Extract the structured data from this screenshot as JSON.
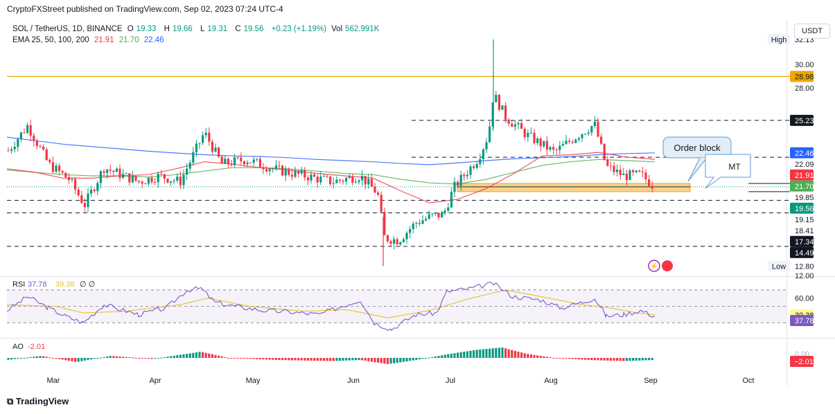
{
  "header": {
    "published": "CryptoFXStreet published on TradingView.com, Sep 02, 2023 07:24 UTC-4"
  },
  "legend": {
    "symbol": "SOL / TetherUS, 1D, BINANCE",
    "open_label": "O",
    "open": "19.33",
    "high_label": "H",
    "high": "19.66",
    "low_label": "L",
    "low": "19.31",
    "close_label": "C",
    "close": "19.56",
    "change": "+0.23 (+1.19%)",
    "vol_label": "Vol",
    "vol": "562.991K",
    "ema_label": "EMA 25, 50, 100, 200",
    "ema25": "21.91",
    "ema50": "21.70",
    "ema100": "",
    "ema200": "22.46"
  },
  "currency_button": "USDT",
  "footer": {
    "brand": "TradingView"
  },
  "colors": {
    "up": "#089981",
    "down": "#f23645",
    "ema25": "#f23645",
    "ema50": "#4caf50",
    "ema200": "#2962ff",
    "orange_line": "#f0a500",
    "order_block": "#ffb74d",
    "rsi": "#7e57c2",
    "rsi_ma": "#e6c229"
  },
  "chart_data": [
    {
      "type": "candlestick",
      "title": "SOL / TetherUS, 1D, BINANCE",
      "ylim": [
        12.0,
        32.0
      ],
      "x_axis_labels": [
        "Mar",
        "Apr",
        "May",
        "Jun",
        "Jul",
        "Aug",
        "Sep",
        "Oct"
      ],
      "y_ticks": [
        "30.00",
        "28.00",
        "12.00"
      ],
      "price_labels": [
        {
          "text": "High",
          "value": "32.13",
          "kind": "tag"
        },
        {
          "text": "",
          "value": "28.98",
          "kind": "orange"
        },
        {
          "text": "",
          "value": "25.23",
          "kind": "dark"
        },
        {
          "text": "",
          "value": "22.46",
          "kind": "blue"
        },
        {
          "text": "",
          "value": "22.09",
          "kind": "plain"
        },
        {
          "text": "",
          "value": "21.91",
          "kind": "red"
        },
        {
          "text": "",
          "value": "21.70",
          "kind": "green"
        },
        {
          "text": "",
          "value": "19.85",
          "kind": "plain"
        },
        {
          "text": "",
          "value": "19.56",
          "kind": "teal"
        },
        {
          "text": "",
          "value": "19.15",
          "kind": "plain"
        },
        {
          "text": "",
          "value": "18.41",
          "kind": "plain"
        },
        {
          "text": "",
          "value": "17.34",
          "kind": "dark"
        },
        {
          "text": "",
          "value": "14.49",
          "kind": "dark"
        },
        {
          "text": "Low",
          "value": "12.80",
          "kind": "tag"
        }
      ],
      "horizontal_levels": [
        {
          "value": 28.98,
          "style": "solid-orange"
        },
        {
          "value": 25.23,
          "style": "dashed",
          "from": "Jul"
        },
        {
          "value": 22.09,
          "style": "dashed",
          "from": "Jul"
        },
        {
          "value": 19.85,
          "style": "solid-short"
        },
        {
          "value": 19.15,
          "style": "solid-short"
        },
        {
          "value": 18.41,
          "style": "dashed"
        },
        {
          "value": 17.34,
          "style": "dashed"
        },
        {
          "value": 14.49,
          "style": "dashed"
        }
      ],
      "order_block": {
        "low": 19.15,
        "high": 19.85,
        "label": "Order block"
      },
      "annotation_mt": "MT",
      "ema200_series": [
        23.8,
        23.5,
        23.2,
        23.0,
        22.8,
        22.6,
        22.45,
        22.3,
        22.2,
        22.15,
        22.05,
        21.9,
        21.8,
        21.7,
        21.55,
        21.45,
        21.6,
        21.8,
        21.95,
        22.05,
        22.15,
        22.3,
        22.4,
        22.46
      ],
      "ema50_series": [
        21.0,
        20.8,
        20.6,
        20.5,
        20.5,
        20.4,
        20.6,
        20.9,
        21.2,
        21.2,
        21.1,
        20.9,
        20.7,
        20.6,
        20.2,
        19.9,
        19.8,
        20.2,
        20.8,
        21.4,
        21.7,
        21.9,
        21.8,
        21.7
      ],
      "ema25_series": [
        21.1,
        20.8,
        20.3,
        20.3,
        20.5,
        20.6,
        21.1,
        21.7,
        21.5,
        21.2,
        21.0,
        20.7,
        20.5,
        20.3,
        19.2,
        18.2,
        18.5,
        19.4,
        20.7,
        22.2,
        22.3,
        22.5,
        22.1,
        21.91
      ]
    },
    {
      "type": "line",
      "title": "RSI",
      "label": "RSI",
      "values_text": "37.78",
      "ma_text": "39.38",
      "na_text": "∅ ∅",
      "ylim": [
        20,
        80
      ],
      "y_ticks": [
        "60.00"
      ],
      "rsi_latest": 37.78,
      "rsi_ma_latest": 39.38
    },
    {
      "type": "bar",
      "title": "AO",
      "label": "AO",
      "value_text": "-2.01",
      "value_label": "−2.01",
      "y_tick": "0.00",
      "latest": -2.01
    }
  ]
}
